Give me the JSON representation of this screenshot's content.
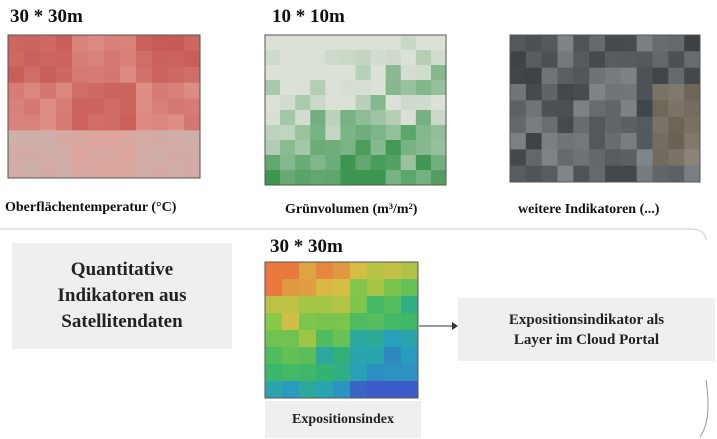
{
  "inputs": [
    {
      "resolution": "30 * 30m",
      "label": "Oberflächentemperatur (°C)"
    },
    {
      "resolution": "10 * 10m",
      "label": "Grünvolumen (m³/m²)"
    },
    {
      "label": "weitere Indikatoren (...)"
    }
  ],
  "summary": "Quantitative Indikatoren aus Satellitendaten",
  "result": {
    "resolution": "30 * 30m",
    "label": "Expositionsindex"
  },
  "output": "Expositionsindikator als Layer im Cloud Portal"
}
